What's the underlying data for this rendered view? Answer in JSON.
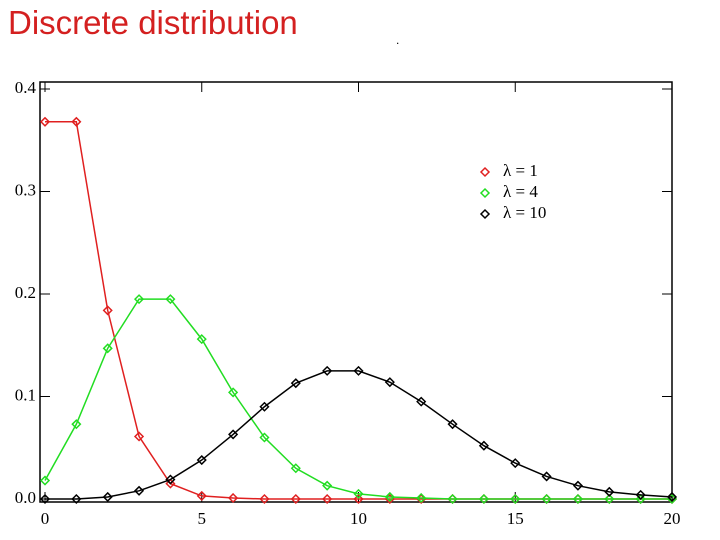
{
  "chart_data": {
    "type": "line",
    "title": "Discrete distribution",
    "title_suffix": ".",
    "x": [
      0,
      1,
      2,
      3,
      4,
      5,
      6,
      7,
      8,
      9,
      10,
      11,
      12,
      13,
      14,
      15,
      16,
      17,
      18,
      19,
      20
    ],
    "series": [
      {
        "name": "λ = 1",
        "color": "#e02020",
        "values": [
          0.368,
          0.368,
          0.184,
          0.061,
          0.015,
          0.003,
          0.001,
          0,
          0,
          0,
          0,
          0,
          0,
          0,
          0,
          0,
          0,
          0,
          0,
          0,
          0
        ]
      },
      {
        "name": "λ = 4",
        "color": "#22dd22",
        "values": [
          0.018,
          0.073,
          0.147,
          0.195,
          0.195,
          0.156,
          0.104,
          0.06,
          0.03,
          0.013,
          0.005,
          0.002,
          0.001,
          0,
          0,
          0,
          0,
          0,
          0,
          0,
          0
        ]
      },
      {
        "name": "λ = 10",
        "color": "#000000",
        "values": [
          0,
          0,
          0.002,
          0.008,
          0.019,
          0.038,
          0.063,
          0.09,
          0.113,
          0.125,
          0.125,
          0.114,
          0.095,
          0.073,
          0.052,
          0.035,
          0.022,
          0.013,
          0.007,
          0.004,
          0.002
        ]
      }
    ],
    "xlim": [
      0,
      20
    ],
    "xticks": [
      0,
      5,
      10,
      15,
      20
    ],
    "ylim": [
      0,
      0.4
    ],
    "yticks": [
      {
        "value": 0,
        "label": "0.0"
      },
      0.1,
      0.2,
      0.3,
      0.4
    ],
    "legend": "upper right"
  }
}
